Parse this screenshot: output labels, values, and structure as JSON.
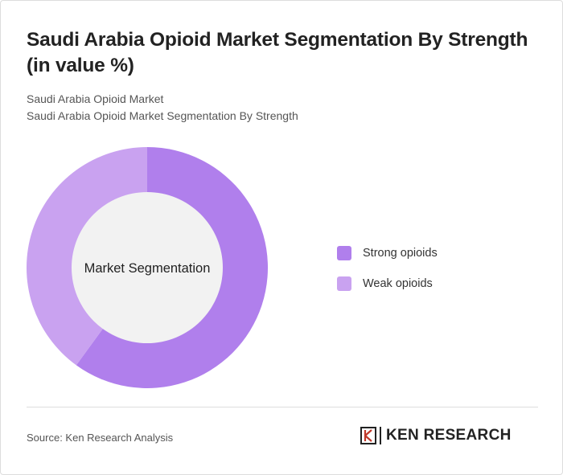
{
  "header": {
    "title": "Saudi Arabia Opioid Market Segmentation By Strength (in value %)",
    "subtitle_1": "Saudi Arabia Opioid Market",
    "subtitle_2": "Saudi Arabia Opioid Market Segmentation By Strength"
  },
  "chart_data": {
    "type": "pie",
    "variant": "donut",
    "center_label": "Market Segmentation",
    "categories": [
      "Strong opioids",
      "Weak opioids"
    ],
    "values": [
      60,
      40
    ],
    "colors": [
      "#b07fec",
      "#c9a2f0"
    ],
    "legend_position": "right"
  },
  "legend": {
    "items": [
      {
        "label": "Strong opioids",
        "color": "#b07fec"
      },
      {
        "label": "Weak opioids",
        "color": "#c9a2f0"
      }
    ]
  },
  "footer": {
    "source": "Source: Ken Research Analysis",
    "logo_text": "KEN RESEARCH"
  }
}
